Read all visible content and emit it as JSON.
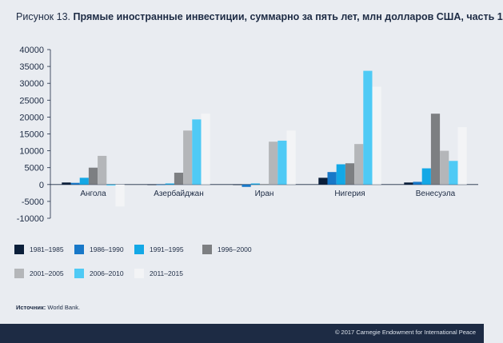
{
  "title": {
    "lead": "Рисунок 13.",
    "main": "Прямые иностранные инвестиции, суммарно за пять лет, млн долларов США, часть 1"
  },
  "chart_data": {
    "type": "bar",
    "title": "Прямые иностранные инвестиции, суммарно за пять лет, млн долларов США, часть 1",
    "xlabel": "",
    "ylabel": "",
    "ylim": [
      -10000,
      40000
    ],
    "yticks": [
      "-10000",
      "-5000",
      "0",
      "5000",
      "10000",
      "15000",
      "20000",
      "25000",
      "30000",
      "35000",
      "40000"
    ],
    "grid": false,
    "legend_position": "bottom",
    "categories": [
      "Ангола",
      "Азербайджан",
      "Иран",
      "Нигерия",
      "Венесуэла"
    ],
    "series": [
      {
        "name": "1981–1985",
        "color": "#0b1f3a",
        "values": [
          600,
          0,
          -100,
          2000,
          600
        ]
      },
      {
        "name": "1986–1990",
        "color": "#1878c8",
        "values": [
          500,
          0,
          -700,
          3700,
          800
        ]
      },
      {
        "name": "1991–1995",
        "color": "#13a8e6",
        "values": [
          2000,
          300,
          300,
          6000,
          4800
        ]
      },
      {
        "name": "1996–2000",
        "color": "#7d7f82",
        "values": [
          5000,
          3500,
          100,
          6300,
          21000
        ]
      },
      {
        "name": "2001–2005",
        "color": "#b4b6b9",
        "values": [
          8500,
          16000,
          12700,
          12000,
          10000
        ]
      },
      {
        "name": "2006–2010",
        "color": "#4fcaf5",
        "values": [
          -300,
          19300,
          13000,
          33700,
          7000
        ]
      },
      {
        "name": "2011–2015",
        "color": "#f3f4f6",
        "values": [
          -6500,
          21000,
          16000,
          29000,
          17000
        ]
      }
    ]
  },
  "source": {
    "label": "Источник:",
    "text": "World Bank."
  },
  "footer": {
    "text": "© 2017 Carnegie Endowment for International Peace"
  }
}
